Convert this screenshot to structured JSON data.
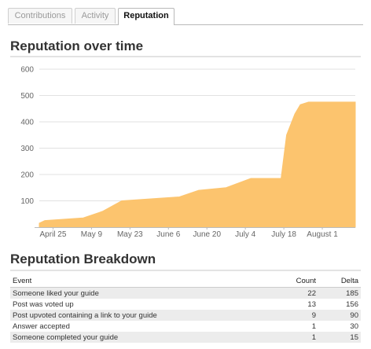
{
  "tabs": [
    {
      "label": "Contributions",
      "active": false
    },
    {
      "label": "Activity",
      "active": false
    },
    {
      "label": "Reputation",
      "active": true
    }
  ],
  "section_titles": {
    "over_time": "Reputation over time",
    "breakdown": "Reputation Breakdown"
  },
  "chart_data": {
    "type": "area",
    "title": "",
    "xlabel": "",
    "ylabel": "",
    "ylim": [
      0,
      600
    ],
    "yticks": [
      100,
      200,
      300,
      400,
      500,
      600
    ],
    "grid": true,
    "x_tick_labels": [
      "April 25",
      "May 9",
      "May 23",
      "June 6",
      "June 20",
      "July 4",
      "July 18",
      "August 1"
    ],
    "x": [
      "2013-04-20",
      "2013-04-22",
      "2013-05-06",
      "2013-05-13",
      "2013-05-20",
      "2013-06-10",
      "2013-06-17",
      "2013-06-27",
      "2013-07-06",
      "2013-07-17",
      "2013-07-19",
      "2013-07-22",
      "2013-07-24",
      "2013-07-27",
      "2013-08-13"
    ],
    "values": [
      15,
      25,
      35,
      60,
      100,
      115,
      140,
      150,
      185,
      185,
      350,
      430,
      465,
      475,
      475
    ],
    "color": "#fcc46e"
  },
  "breakdown": {
    "headers": {
      "event": "Event",
      "count": "Count",
      "delta": "Delta"
    },
    "rows": [
      {
        "event": "Someone liked your guide",
        "count": "22",
        "delta": "185"
      },
      {
        "event": "Post was voted up",
        "count": "13",
        "delta": "156"
      },
      {
        "event": "Post upvoted containing a link to your guide",
        "count": "9",
        "delta": "90"
      },
      {
        "event": "Answer accepted",
        "count": "1",
        "delta": "30"
      },
      {
        "event": "Someone completed your guide",
        "count": "1",
        "delta": "15"
      }
    ]
  }
}
